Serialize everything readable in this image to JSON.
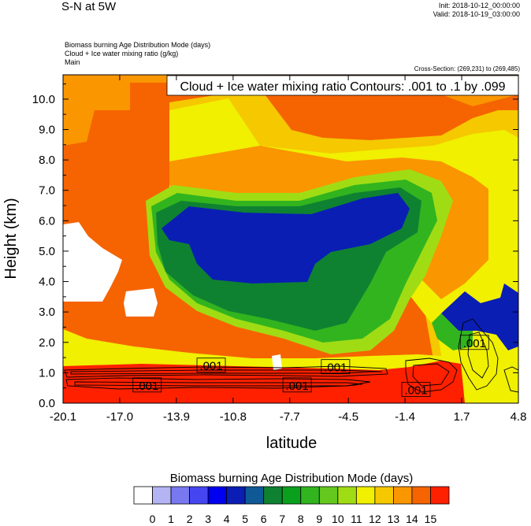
{
  "header": {
    "title": "S-N at 5W",
    "init": "Init: 2018-10-12_00:00:00",
    "valid": "Valid: 2018-10-19_03:00:00",
    "field_lines": [
      "Biomass burning Age Distribution Mode   (days)",
      "Cloud + Ice water mixing ratio   (g/kg)",
      "Main"
    ],
    "cross_section": "Cross-Section: (269,231) to (269,485)"
  },
  "chart_data": {
    "type": "heatmap",
    "contour_title": "Cloud + Ice water mixing ratio Contours: .001 to .1 by .099",
    "xlabel": "latitude",
    "ylabel": "Height (km)",
    "x_ticks": [
      "-20.1",
      "-17.0",
      "-13.9",
      "-10.8",
      "-7.7",
      "-4.5",
      "-1.4",
      "1.7",
      "4.8"
    ],
    "y_ticks": [
      "0.0",
      "1.0",
      "2.0",
      "3.0",
      "4.0",
      "5.0",
      "6.0",
      "7.0",
      "8.0",
      "9.0",
      "10.0"
    ],
    "xlim": [
      -20.1,
      4.8
    ],
    "ylim": [
      0.0,
      10.8
    ],
    "contour_labels": [
      {
        "text": ".001",
        "lat": -15.5,
        "h": 0.6
      },
      {
        "text": ".001",
        "lat": -12.0,
        "h": 1.25
      },
      {
        "text": ".001",
        "lat": -7.3,
        "h": 0.6
      },
      {
        "text": ".001",
        "lat": -5.2,
        "h": 1.2
      },
      {
        "text": ".001",
        "lat": -0.8,
        "h": 0.45
      },
      {
        "text": ".001",
        "lat": 2.4,
        "h": 2.0
      }
    ],
    "colorbar": {
      "title": "Biomass burning Age Distribution Mode  (days)",
      "labels": [
        "0",
        "1",
        "2",
        "3",
        "4",
        "5",
        "6",
        "7",
        "8",
        "9",
        "10",
        "11",
        "12",
        "13",
        "14",
        "15"
      ],
      "colors": [
        "#ffffff",
        "#b4b4f5",
        "#7878f0",
        "#4646f0",
        "#0000f0",
        "#0a1eb4",
        "#0f5a96",
        "#0f8232",
        "#0aa01e",
        "#32b41e",
        "#64c81e",
        "#a0dc14",
        "#f0f000",
        "#f5c800",
        "#fa9600",
        "#f56400",
        "#ff2000"
      ]
    }
  }
}
